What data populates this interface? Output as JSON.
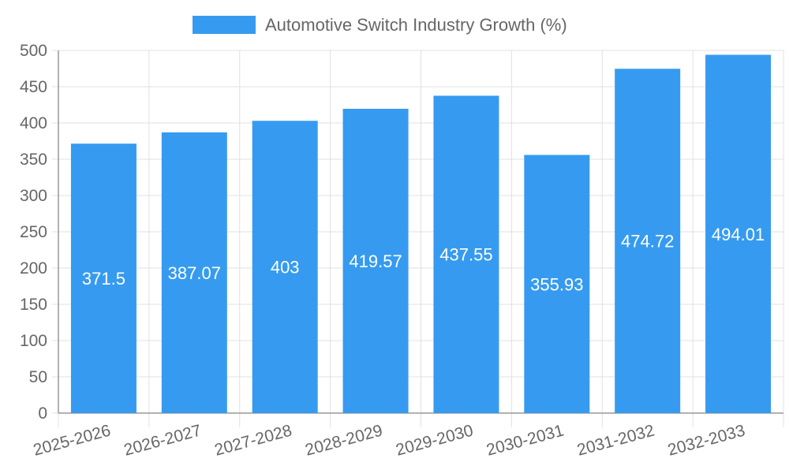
{
  "chart_data": {
    "type": "bar",
    "categories": [
      "2025-2026",
      "2026-2027",
      "2027-2028",
      "2028-2029",
      "2029-2030",
      "2030-2031",
      "2031-2032",
      "2032-2033"
    ],
    "series": [
      {
        "name": "Automotive Switch Industry Growth (%)",
        "values": [
          371.5,
          387.07,
          403,
          419.57,
          437.55,
          355.93,
          474.72,
          494.01
        ]
      }
    ],
    "data_labels": [
      "371.5",
      "387.07",
      "403",
      "419.57",
      "437.55",
      "355.93",
      "474.72",
      "494.01"
    ],
    "y_ticks": [
      "0",
      "50",
      "100",
      "150",
      "200",
      "250",
      "300",
      "350",
      "400",
      "450",
      "500"
    ],
    "ylim": [
      0,
      500
    ],
    "grid": true,
    "legend_position": "top",
    "colors": {
      "bar": "#369BF0",
      "grid": "#e0e0e0",
      "axis": "#999999",
      "text": "#666666",
      "label": "#ffffff"
    }
  }
}
